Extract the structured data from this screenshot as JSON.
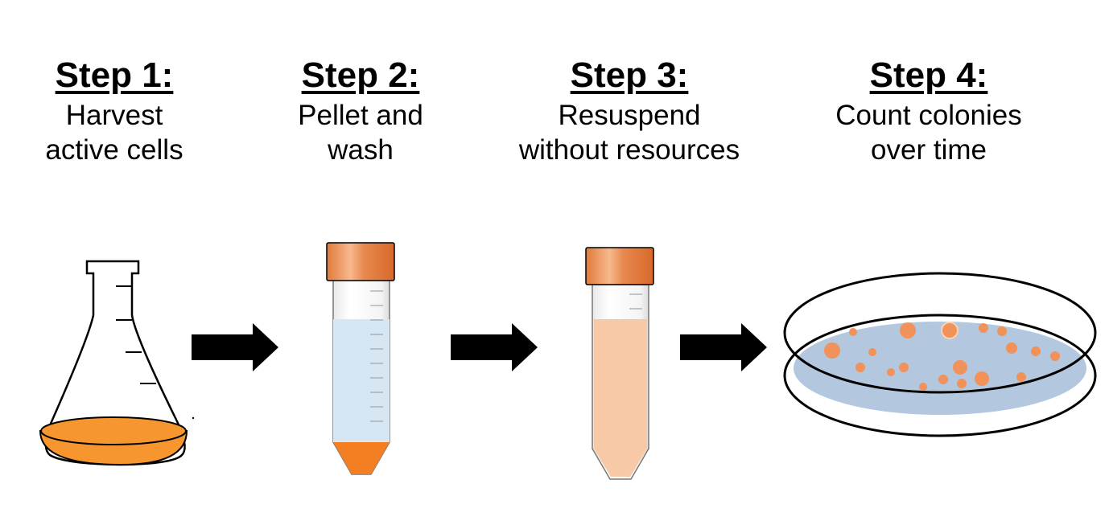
{
  "steps": [
    {
      "title": "Step 1:",
      "line1": "Harvest",
      "line2": "active cells"
    },
    {
      "title": "Step 2:",
      "line1": "Pellet and",
      "line2": "wash"
    },
    {
      "title": "Step 3:",
      "line1": "Resuspend",
      "line2": "without resources"
    },
    {
      "title": "Step 4:",
      "line1": "Count colonies",
      "line2": "over time"
    }
  ],
  "colors": {
    "culture": "#f7962f",
    "pellet": "#f47f22",
    "wash_buffer": "#d6e6f2",
    "suspension": "#f8c9a6",
    "cap": "#e8894f",
    "plate_agar": "#b3c8df",
    "colony": "#f0925a",
    "arrow": "#000000"
  }
}
